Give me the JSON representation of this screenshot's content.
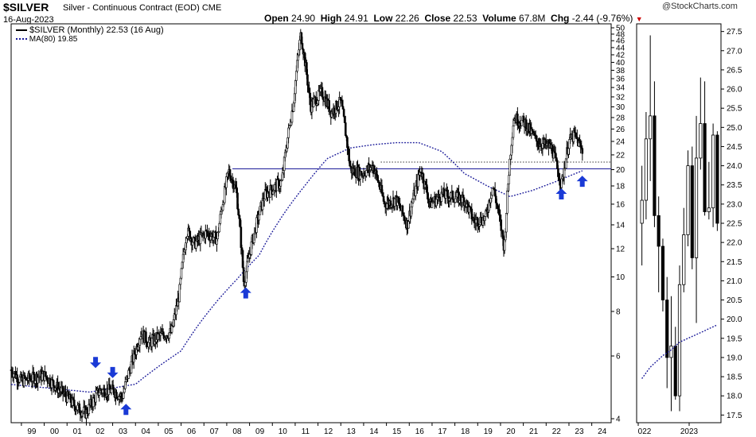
{
  "header": {
    "symbol": "$SILVER",
    "description": "Silver - Continuous Contract (EOD)",
    "exchange": "CME",
    "date": "16-Aug-2023",
    "watermark": "@StockCharts.com",
    "open_label": "Open",
    "open": "24.90",
    "high_label": "High",
    "high": "24.91",
    "low_label": "Low",
    "low": "22.26",
    "close_label": "Close",
    "close": "22.53",
    "volume_label": "Volume",
    "volume": "67.8M",
    "chg_label": "Chg",
    "chg": "-2.44 (-9.76%)"
  },
  "legend": {
    "price": "$SILVER (Monthly) 22.53 (16 Aug)",
    "ma": "MA(80) 19.85"
  },
  "colors": {
    "candle": "#000000",
    "ma": "#1a1a99",
    "horizontal": "#1a1a99",
    "arrow": "#1a3ad6",
    "down_triangle": "#cc0000"
  },
  "chart_data": [
    {
      "type": "candlestick",
      "name": "monthly",
      "y_scale": "log",
      "ylim": [
        4,
        50
      ],
      "x_tick_labels": [
        "99",
        "00",
        "01",
        "02",
        "03",
        "04",
        "05",
        "06",
        "07",
        "08",
        "09",
        "10",
        "11",
        "12",
        "13",
        "14",
        "15",
        "16",
        "17",
        "18",
        "19",
        "20",
        "21",
        "22",
        "23",
        "24"
      ],
      "y_tick_labels": [
        "4",
        "6",
        "8",
        "10",
        "12",
        "14",
        "16",
        "18",
        "20",
        "22",
        "24",
        "26",
        "28",
        "30",
        "32",
        "34",
        "36",
        "38",
        "40",
        "42",
        "44",
        "46",
        "48",
        "50"
      ],
      "close_path": [
        [
          "1998-06",
          5.6
        ],
        [
          "1999-01",
          5.1
        ],
        [
          "1999-06",
          5.2
        ],
        [
          "2000-01",
          5.3
        ],
        [
          "2000-06",
          5.0
        ],
        [
          "2001-01",
          4.6
        ],
        [
          "2001-06",
          4.3
        ],
        [
          "2001-11",
          4.15
        ],
        [
          "2002-06",
          4.8
        ],
        [
          "2003-01",
          4.8
        ],
        [
          "2003-06",
          4.6
        ],
        [
          "2004-01",
          6.2
        ],
        [
          "2004-04",
          7.0
        ],
        [
          "2004-08",
          6.5
        ],
        [
          "2005-01",
          6.8
        ],
        [
          "2005-08",
          7.0
        ],
        [
          "2005-12",
          8.9
        ],
        [
          "2006-04",
          13.5
        ],
        [
          "2006-08",
          12.4
        ],
        [
          "2007-02",
          13.3
        ],
        [
          "2007-08",
          12.8
        ],
        [
          "2008-02",
          19.8
        ],
        [
          "2008-06",
          17.5
        ],
        [
          "2008-10",
          9.5
        ],
        [
          "2009-03",
          13.0
        ],
        [
          "2009-09",
          17.0
        ],
        [
          "2010-06",
          18.5
        ],
        [
          "2010-12",
          30.5
        ],
        [
          "2011-04",
          48.0
        ],
        [
          "2011-09",
          30.0
        ],
        [
          "2012-03",
          33.0
        ],
        [
          "2012-08",
          29.0
        ],
        [
          "2013-01",
          31.0
        ],
        [
          "2013-06",
          20.0
        ],
        [
          "2013-12",
          19.5
        ],
        [
          "2014-06",
          20.5
        ],
        [
          "2014-12",
          16.0
        ],
        [
          "2015-06",
          16.5
        ],
        [
          "2015-12",
          14.0
        ],
        [
          "2016-07",
          20.0
        ],
        [
          "2016-12",
          16.0
        ],
        [
          "2017-06",
          17.0
        ],
        [
          "2017-12",
          16.8
        ],
        [
          "2018-06",
          16.5
        ],
        [
          "2018-11",
          14.3
        ],
        [
          "2019-05",
          14.6
        ],
        [
          "2019-09",
          18.0
        ],
        [
          "2020-03",
          12.0
        ],
        [
          "2020-08",
          28.0
        ],
        [
          "2021-02",
          27.0
        ],
        [
          "2021-08",
          24.0
        ],
        [
          "2022-04",
          23.0
        ],
        [
          "2022-09",
          18.0
        ],
        [
          "2023-01",
          24.0
        ],
        [
          "2023-04",
          25.0
        ],
        [
          "2023-08",
          22.5
        ]
      ],
      "ma80_path": [
        [
          "1998-06",
          5.0
        ],
        [
          "2002-01",
          4.75
        ],
        [
          "2004-01",
          5.0
        ],
        [
          "2006-01",
          6.2
        ],
        [
          "2008-06",
          9.8
        ],
        [
          "2009-06",
          11.5
        ],
        [
          "2011-06",
          18.0
        ],
        [
          "2012-06",
          21.5
        ],
        [
          "2013-06",
          23.0
        ],
        [
          "2014-06",
          23.5
        ],
        [
          "2015-06",
          23.8
        ],
        [
          "2016-06",
          23.8
        ],
        [
          "2017-06",
          22.5
        ],
        [
          "2018-06",
          19.5
        ],
        [
          "2019-06",
          18.0
        ],
        [
          "2020-06",
          16.8
        ],
        [
          "2021-06",
          17.5
        ],
        [
          "2022-06",
          18.5
        ],
        [
          "2023-08",
          19.85
        ]
      ],
      "horizontal_lines": [
        20.1
      ],
      "dotted_level": 21.0,
      "annotations": [
        {
          "type": "arrow-down",
          "date": "2002-04",
          "price": 5.55
        },
        {
          "type": "arrow-down",
          "date": "2003-01",
          "price": 5.2
        },
        {
          "type": "arrow-up",
          "date": "2003-08",
          "price": 4.1
        },
        {
          "type": "arrow-up",
          "date": "2008-11",
          "price": 8.7
        },
        {
          "type": "arrow-up",
          "date": "2022-09",
          "price": 16.5
        },
        {
          "type": "arrow-up",
          "date": "2023-08",
          "price": 17.9
        }
      ]
    },
    {
      "type": "candlestick",
      "name": "zoom",
      "ylim": [
        17.3,
        27.7
      ],
      "x_tick_labels": [
        "022",
        "2023"
      ],
      "y_tick_labels": [
        "17.5",
        "18.0",
        "18.5",
        "19.0",
        "19.5",
        "20.0",
        "20.5",
        "21.0",
        "21.5",
        "22.0",
        "22.5",
        "23.0",
        "23.5",
        "24.0",
        "24.5",
        "25.0",
        "25.5",
        "26.0",
        "26.5",
        "27.0",
        "27.5"
      ],
      "candles": [
        [
          22.5,
          24.0,
          21.4,
          23.1
        ],
        [
          23.1,
          25.4,
          22.6,
          24.7
        ],
        [
          24.7,
          27.4,
          23.6,
          25.3
        ],
        [
          25.3,
          26.2,
          22.4,
          22.7
        ],
        [
          22.7,
          23.2,
          20.7,
          21.9
        ],
        [
          21.9,
          22.1,
          20.2,
          20.5
        ],
        [
          20.5,
          21.1,
          18.2,
          19.0
        ],
        [
          19.0,
          20.6,
          17.6,
          19.3
        ],
        [
          19.3,
          19.8,
          17.9,
          18.0
        ],
        [
          18.0,
          21.4,
          17.6,
          20.9
        ],
        [
          20.9,
          22.9,
          20.7,
          22.2
        ],
        [
          22.2,
          24.4,
          21.9,
          24.0
        ],
        [
          24.0,
          24.5,
          21.3,
          21.6
        ],
        [
          21.6,
          25.3,
          19.9,
          24.2
        ],
        [
          24.2,
          26.3,
          23.9,
          25.1
        ],
        [
          25.1,
          26.2,
          22.7,
          22.8
        ],
        [
          22.8,
          24.1,
          22.6,
          22.9
        ],
        [
          22.9,
          25.1,
          22.4,
          24.8
        ],
        [
          24.8,
          24.9,
          22.3,
          22.5
        ]
      ],
      "ma80_path": [
        18.45,
        18.6,
        18.75,
        18.85,
        18.95,
        19.05,
        19.12,
        19.2,
        19.3,
        19.4,
        19.45,
        19.5,
        19.55,
        19.6,
        19.65,
        19.7,
        19.75,
        19.8,
        19.85
      ]
    }
  ]
}
